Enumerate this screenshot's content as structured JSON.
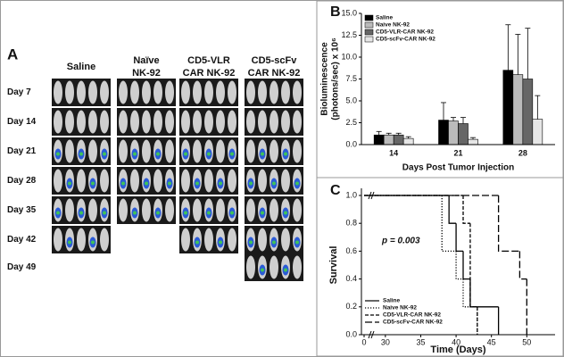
{
  "panel_a": {
    "label": "A",
    "groups": [
      [
        "Saline"
      ],
      [
        "Naïve",
        "NK-92"
      ],
      [
        "CD5-VLR",
        "CAR NK-92"
      ],
      [
        "CD5-scFv",
        "CAR NK-92"
      ]
    ],
    "days": [
      "Day 7",
      "Day 14",
      "Day 21",
      "Day 28",
      "Day 35",
      "Day 42",
      "Day 49"
    ]
  },
  "chart_data": [
    {
      "type": "bar",
      "panel": "B",
      "ylabel": [
        "Bioluminescence",
        "(photons/sec) x 10⁶"
      ],
      "xlabel": "Days Post Tumor Injection",
      "categories": [
        "14",
        "21",
        "28"
      ],
      "ylim": [
        0,
        15
      ],
      "yticks": [
        {
          "value": 0,
          "label": "0.0"
        },
        {
          "value": 2.5,
          "label": "2.5"
        },
        {
          "value": 5,
          "label": "5.0"
        },
        {
          "value": 7.5,
          "label": "7.5"
        },
        {
          "value": 10,
          "label": "10.0"
        },
        {
          "value": 12.5,
          "label": "12.5"
        },
        {
          "value": 15,
          "label": "15.0"
        }
      ],
      "legend": "top-left",
      "series": [
        {
          "name": "Saline",
          "color": "#000000",
          "values": [
            1.1,
            2.8,
            8.5
          ],
          "errors": [
            0.4,
            2.0,
            5.2
          ]
        },
        {
          "name": "Naive NK-92",
          "color": "#bbbbbb",
          "values": [
            1.1,
            2.7,
            8.0
          ],
          "errors": [
            0.2,
            0.4,
            4.6
          ]
        },
        {
          "name": "CD5-VLR-CAR NK-92",
          "color": "#666666",
          "values": [
            1.1,
            2.4,
            7.5
          ],
          "errors": [
            0.2,
            0.7,
            5.8
          ]
        },
        {
          "name": "CD5-scFv-CAR NK-92",
          "color": "#e6e6e6",
          "values": [
            0.7,
            0.6,
            2.9
          ],
          "errors": [
            0.2,
            0.2,
            2.7
          ]
        }
      ]
    },
    {
      "type": "step",
      "panel": "C",
      "ylabel": "Survival",
      "xlabel": "Time (Days)",
      "annotation": "p = 0.003",
      "xlim": [
        0,
        54
      ],
      "xbreak": [
        1,
        28
      ],
      "xticks": [
        0,
        30,
        35,
        40,
        45,
        50
      ],
      "ylim": [
        0,
        1
      ],
      "yticks": [
        {
          "value": 0,
          "label": "0.0"
        },
        {
          "value": 0.2,
          "label": "0.2"
        },
        {
          "value": 0.4,
          "label": "0.4"
        },
        {
          "value": 0.6,
          "label": "0.6"
        },
        {
          "value": 0.8,
          "label": "0.8"
        },
        {
          "value": 1,
          "label": "1.0"
        }
      ],
      "legend": "bottom-left",
      "series": [
        {
          "name": "Saline",
          "color": "#000000",
          "dash": "solid",
          "x": [
            0,
            39,
            40,
            41,
            42,
            46
          ],
          "values": [
            1,
            0.8,
            0.6,
            0.4,
            0.2,
            0
          ]
        },
        {
          "name": "Naive NK-92",
          "color": "#000000",
          "dash": "dotted",
          "x": [
            0,
            38,
            40,
            41,
            43
          ],
          "values": [
            1,
            0.6,
            0.4,
            0.2,
            0
          ]
        },
        {
          "name": "CD5-VLR-CAR NK-92",
          "color": "#000000",
          "dash": "dashed",
          "x": [
            0,
            41,
            42,
            43
          ],
          "values": [
            1,
            0.8,
            0.2,
            0
          ]
        },
        {
          "name": "CD5-scFv-CAR NK-92",
          "color": "#000000",
          "dash": "longdash",
          "x": [
            0,
            46,
            49,
            50
          ],
          "values": [
            1,
            0.6,
            0.4,
            0
          ]
        }
      ]
    }
  ]
}
